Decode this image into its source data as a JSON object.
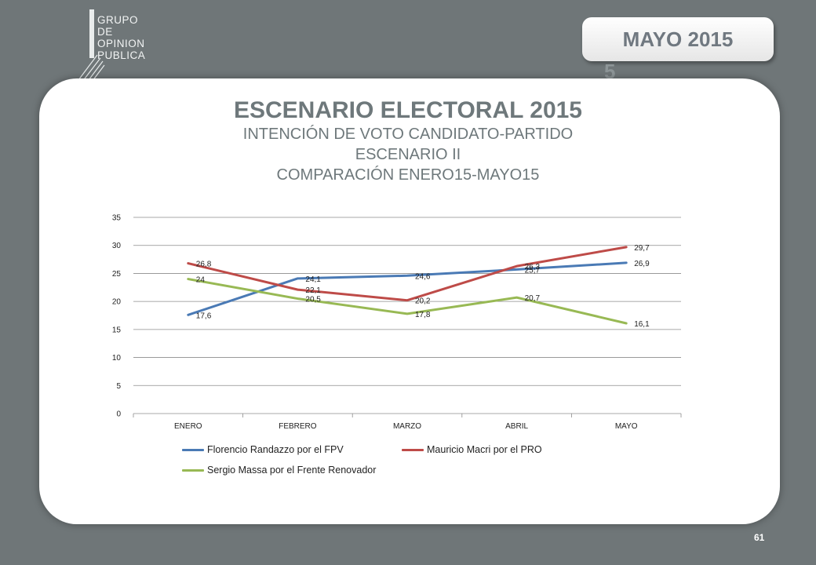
{
  "brand": {
    "lines": [
      "GRUPO",
      "DE",
      "OPINION",
      "PUBLICA"
    ]
  },
  "date_badge": "MAYO 2015",
  "date_badge_ghost": "5",
  "header": {
    "title": "ESCENARIO ELECTORAL 2015",
    "subtitle1": "INTENCIÓN DE VOTO CANDIDATO-PARTIDO",
    "subtitle2": "ESCENARIO II",
    "subtitle3": "COMPARACIÓN ENERO15-MAYO15"
  },
  "page_number": "61",
  "chart_data": {
    "type": "line",
    "categories": [
      "ENERO",
      "FEBRERO",
      "MARZO",
      "ABRIL",
      "MAYO"
    ],
    "ylim": [
      0,
      35
    ],
    "yticks": [
      0,
      5,
      10,
      15,
      20,
      25,
      30,
      35
    ],
    "grid": true,
    "legend_position": "bottom",
    "series": [
      {
        "name": "Florencio Randazzo  por el FPV",
        "color": "#4a7ab5",
        "values": [
          17.6,
          24.1,
          24.6,
          25.7,
          26.9
        ],
        "labels": [
          "17,6",
          "24,1",
          "24,6",
          "25,7",
          "26,9"
        ]
      },
      {
        "name": "Mauricio Macri por el PRO",
        "color": "#be4b48",
        "values": [
          26.8,
          22.1,
          20.2,
          26.3,
          29.7
        ],
        "labels": [
          "26,8",
          "22,1",
          "20,2",
          "26,3",
          "29,7"
        ]
      },
      {
        "name": "Sergio Massa por el Frente Renovador",
        "color": "#98b954",
        "values": [
          24.0,
          20.5,
          17.8,
          20.7,
          16.1
        ],
        "labels": [
          "24",
          "20,5",
          "17,8",
          "20,7",
          "16,1"
        ]
      }
    ]
  }
}
